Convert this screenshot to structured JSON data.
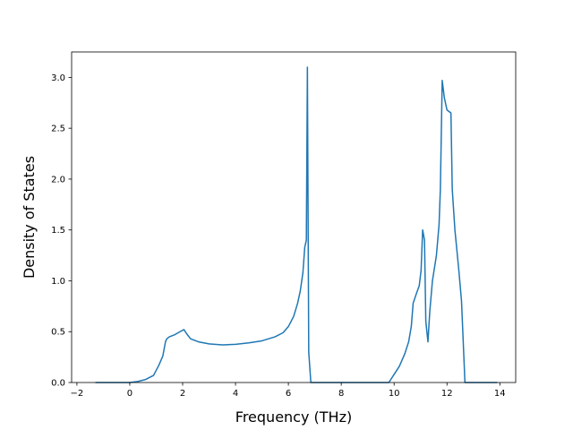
{
  "chart_data": {
    "type": "line",
    "title": "",
    "xlabel": "Frequency (THz)",
    "ylabel": "Density of States",
    "xlim": [
      -2.2,
      14.6
    ],
    "ylim": [
      0,
      3.25
    ],
    "x_ticks": [
      -2,
      0,
      2,
      4,
      6,
      8,
      10,
      12,
      14
    ],
    "x_tick_labels": [
      "−2",
      "0",
      "2",
      "4",
      "6",
      "8",
      "10",
      "12",
      "14"
    ],
    "y_ticks": [
      0.0,
      0.5,
      1.0,
      1.5,
      2.0,
      2.5,
      3.0
    ],
    "y_tick_labels": [
      "0.0",
      "0.5",
      "1.0",
      "1.5",
      "2.0",
      "2.5",
      "3.0"
    ],
    "grid": false,
    "legend": "none",
    "series": [
      {
        "color": "#1f77b4",
        "points": [
          [
            -1.3,
            0.0
          ],
          [
            0.0,
            0.0
          ],
          [
            0.3,
            0.01
          ],
          [
            0.6,
            0.03
          ],
          [
            0.9,
            0.07
          ],
          [
            1.1,
            0.17
          ],
          [
            1.25,
            0.26
          ],
          [
            1.35,
            0.4
          ],
          [
            1.4,
            0.43
          ],
          [
            1.5,
            0.45
          ],
          [
            1.7,
            0.47
          ],
          [
            1.9,
            0.5
          ],
          [
            2.05,
            0.52
          ],
          [
            2.15,
            0.48
          ],
          [
            2.3,
            0.43
          ],
          [
            2.6,
            0.4
          ],
          [
            3.0,
            0.38
          ],
          [
            3.5,
            0.37
          ],
          [
            4.0,
            0.375
          ],
          [
            4.5,
            0.39
          ],
          [
            5.0,
            0.41
          ],
          [
            5.5,
            0.45
          ],
          [
            5.8,
            0.49
          ],
          [
            6.0,
            0.55
          ],
          [
            6.2,
            0.65
          ],
          [
            6.35,
            0.78
          ],
          [
            6.45,
            0.9
          ],
          [
            6.55,
            1.08
          ],
          [
            6.62,
            1.33
          ],
          [
            6.68,
            1.4
          ],
          [
            6.72,
            3.1
          ],
          [
            6.77,
            0.3
          ],
          [
            6.85,
            0.0
          ],
          [
            7.0,
            0.0
          ],
          [
            9.8,
            0.0
          ],
          [
            10.0,
            0.08
          ],
          [
            10.2,
            0.16
          ],
          [
            10.4,
            0.28
          ],
          [
            10.55,
            0.4
          ],
          [
            10.65,
            0.55
          ],
          [
            10.72,
            0.78
          ],
          [
            10.85,
            0.88
          ],
          [
            10.95,
            0.95
          ],
          [
            11.02,
            1.1
          ],
          [
            11.08,
            1.5
          ],
          [
            11.15,
            1.4
          ],
          [
            11.2,
            0.6
          ],
          [
            11.28,
            0.4
          ],
          [
            11.35,
            0.7
          ],
          [
            11.45,
            1.0
          ],
          [
            11.6,
            1.25
          ],
          [
            11.7,
            1.55
          ],
          [
            11.75,
            1.9
          ],
          [
            11.82,
            2.97
          ],
          [
            11.9,
            2.8
          ],
          [
            12.0,
            2.68
          ],
          [
            12.15,
            2.65
          ],
          [
            12.2,
            1.9
          ],
          [
            12.3,
            1.5
          ],
          [
            12.45,
            1.1
          ],
          [
            12.55,
            0.8
          ],
          [
            12.68,
            0.0
          ],
          [
            13.0,
            0.0
          ],
          [
            13.9,
            0.0
          ]
        ]
      }
    ]
  }
}
